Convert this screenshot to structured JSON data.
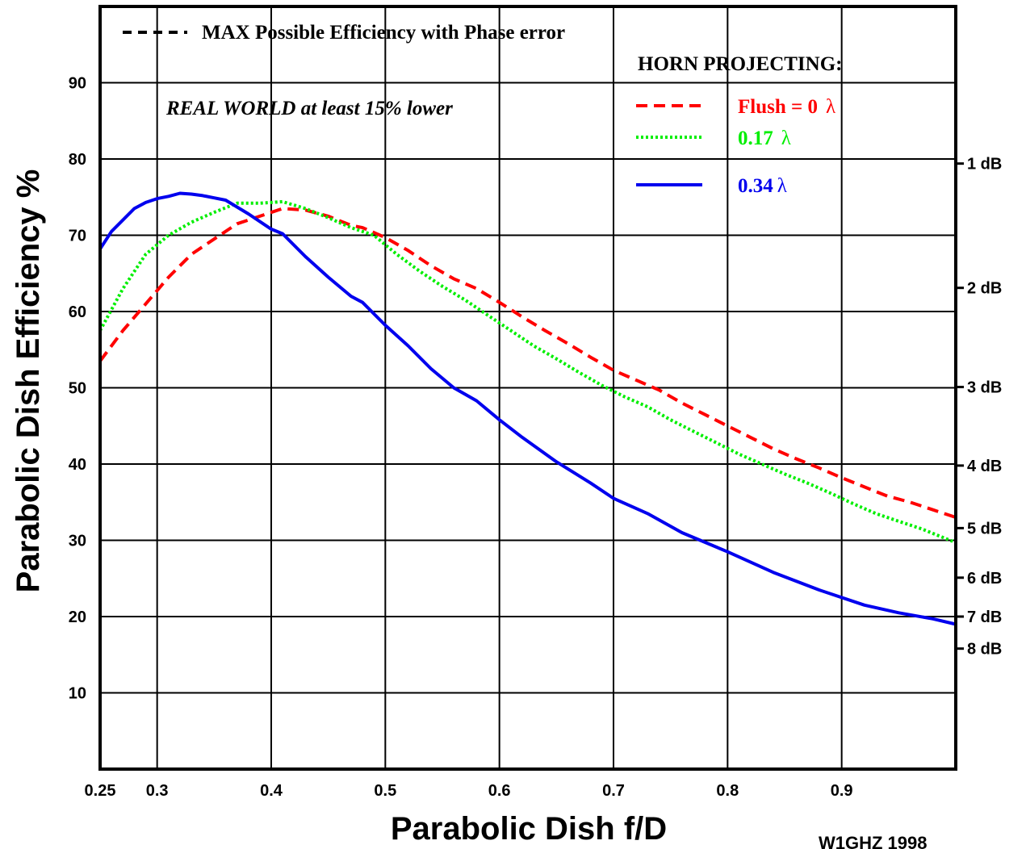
{
  "chart_data": {
    "type": "line",
    "xlabel": "Parabolic Dish f/D",
    "ylabel": "Parabolic Dish Efficiency %",
    "xlim": [
      0.25,
      1.0
    ],
    "ylim": [
      0,
      100
    ],
    "x_ticks": [
      {
        "value": 0.25,
        "label": "0.25"
      },
      {
        "value": 0.3,
        "label": "0.3"
      },
      {
        "value": 0.4,
        "label": "0.4"
      },
      {
        "value": 0.5,
        "label": "0.5"
      },
      {
        "value": 0.6,
        "label": "0.6"
      },
      {
        "value": 0.7,
        "label": "0.7"
      },
      {
        "value": 0.8,
        "label": "0.8"
      },
      {
        "value": 0.9,
        "label": "0.9"
      }
    ],
    "y_ticks": [
      {
        "value": 10,
        "label": "10"
      },
      {
        "value": 20,
        "label": "20"
      },
      {
        "value": 30,
        "label": "30"
      },
      {
        "value": 40,
        "label": "40"
      },
      {
        "value": 50,
        "label": "50"
      },
      {
        "value": 60,
        "label": "60"
      },
      {
        "value": 70,
        "label": "70"
      },
      {
        "value": 80,
        "label": "80"
      },
      {
        "value": 90,
        "label": "90"
      }
    ],
    "right_ticks": [
      {
        "value": 79.4,
        "label": "1 dB"
      },
      {
        "value": 63.1,
        "label": "2 dB"
      },
      {
        "value": 50.1,
        "label": "3 dB"
      },
      {
        "value": 39.8,
        "label": "4 dB"
      },
      {
        "value": 31.6,
        "label": "5 dB"
      },
      {
        "value": 25.1,
        "label": "6 dB"
      },
      {
        "value": 20.0,
        "label": "7 dB"
      },
      {
        "value": 15.8,
        "label": "8 dB"
      }
    ],
    "grid": true,
    "annotations": {
      "max_legend": "MAX Possible Efficiency with Phase error",
      "real_world": "REAL WORLD at least 15% lower",
      "horn_title": "HORN PROJECTING:",
      "credit": "W1GHZ 1998"
    },
    "series": [
      {
        "name": "Flush = 0",
        "lambda": "λ",
        "color": "#ff0000",
        "dash": "14,8",
        "x": [
          0.25,
          0.27,
          0.29,
          0.31,
          0.33,
          0.35,
          0.37,
          0.39,
          0.41,
          0.43,
          0.45,
          0.47,
          0.48,
          0.5,
          0.52,
          0.54,
          0.56,
          0.58,
          0.6,
          0.62,
          0.64,
          0.66,
          0.68,
          0.7,
          0.72,
          0.74,
          0.76,
          0.78,
          0.8,
          0.82,
          0.84,
          0.86,
          0.88,
          0.9,
          0.92,
          0.94,
          0.96,
          0.98,
          1.0
        ],
        "y": [
          53.5,
          57.5,
          61.0,
          64.5,
          67.5,
          69.5,
          71.5,
          72.5,
          73.5,
          73.3,
          72.5,
          71.3,
          71.0,
          69.7,
          68.0,
          66.0,
          64.3,
          63.0,
          61.2,
          59.3,
          57.5,
          55.8,
          54.0,
          52.3,
          51.0,
          49.7,
          48.0,
          46.5,
          45.0,
          43.5,
          42.0,
          40.7,
          39.5,
          38.2,
          37.0,
          35.8,
          35.0,
          34.0,
          33.0
        ]
      },
      {
        "name": "0.17",
        "lambda": "λ",
        "color": "#00ee00",
        "dash": "3,3",
        "x": [
          0.25,
          0.27,
          0.29,
          0.31,
          0.33,
          0.35,
          0.37,
          0.39,
          0.41,
          0.43,
          0.45,
          0.47,
          0.49,
          0.51,
          0.53,
          0.55,
          0.57,
          0.59,
          0.61,
          0.63,
          0.65,
          0.67,
          0.69,
          0.71,
          0.73,
          0.75,
          0.77,
          0.79,
          0.81,
          0.83,
          0.85,
          0.87,
          0.89,
          0.91,
          0.93,
          0.95,
          0.97,
          1.0
        ],
        "y": [
          57.5,
          63.0,
          67.5,
          70.0,
          71.7,
          73.0,
          74.2,
          74.2,
          74.4,
          73.5,
          72.3,
          71.0,
          70.0,
          67.5,
          65.3,
          63.3,
          61.5,
          59.5,
          57.5,
          55.5,
          53.8,
          52.0,
          50.3,
          48.8,
          47.5,
          45.8,
          44.3,
          42.8,
          41.3,
          40.0,
          38.7,
          37.5,
          36.2,
          34.8,
          33.5,
          32.5,
          31.5,
          29.7
        ]
      },
      {
        "name": "0.34",
        "lambda": "λ",
        "color": "#0000ee",
        "dash": "",
        "x": [
          0.25,
          0.26,
          0.27,
          0.28,
          0.29,
          0.3,
          0.31,
          0.32,
          0.33,
          0.34,
          0.35,
          0.36,
          0.38,
          0.4,
          0.41,
          0.43,
          0.45,
          0.47,
          0.48,
          0.5,
          0.52,
          0.54,
          0.56,
          0.58,
          0.6,
          0.62,
          0.65,
          0.68,
          0.7,
          0.73,
          0.76,
          0.8,
          0.84,
          0.88,
          0.92,
          0.95,
          0.98,
          1.0
        ],
        "y": [
          68.2,
          70.5,
          72.0,
          73.5,
          74.3,
          74.8,
          75.1,
          75.5,
          75.4,
          75.2,
          74.9,
          74.6,
          72.8,
          70.8,
          70.2,
          67.2,
          64.5,
          62.0,
          61.2,
          58.2,
          55.5,
          52.5,
          50.0,
          48.3,
          45.8,
          43.5,
          40.3,
          37.5,
          35.5,
          33.5,
          31.0,
          28.5,
          25.8,
          23.5,
          21.5,
          20.5,
          19.7,
          19.0
        ]
      }
    ]
  }
}
